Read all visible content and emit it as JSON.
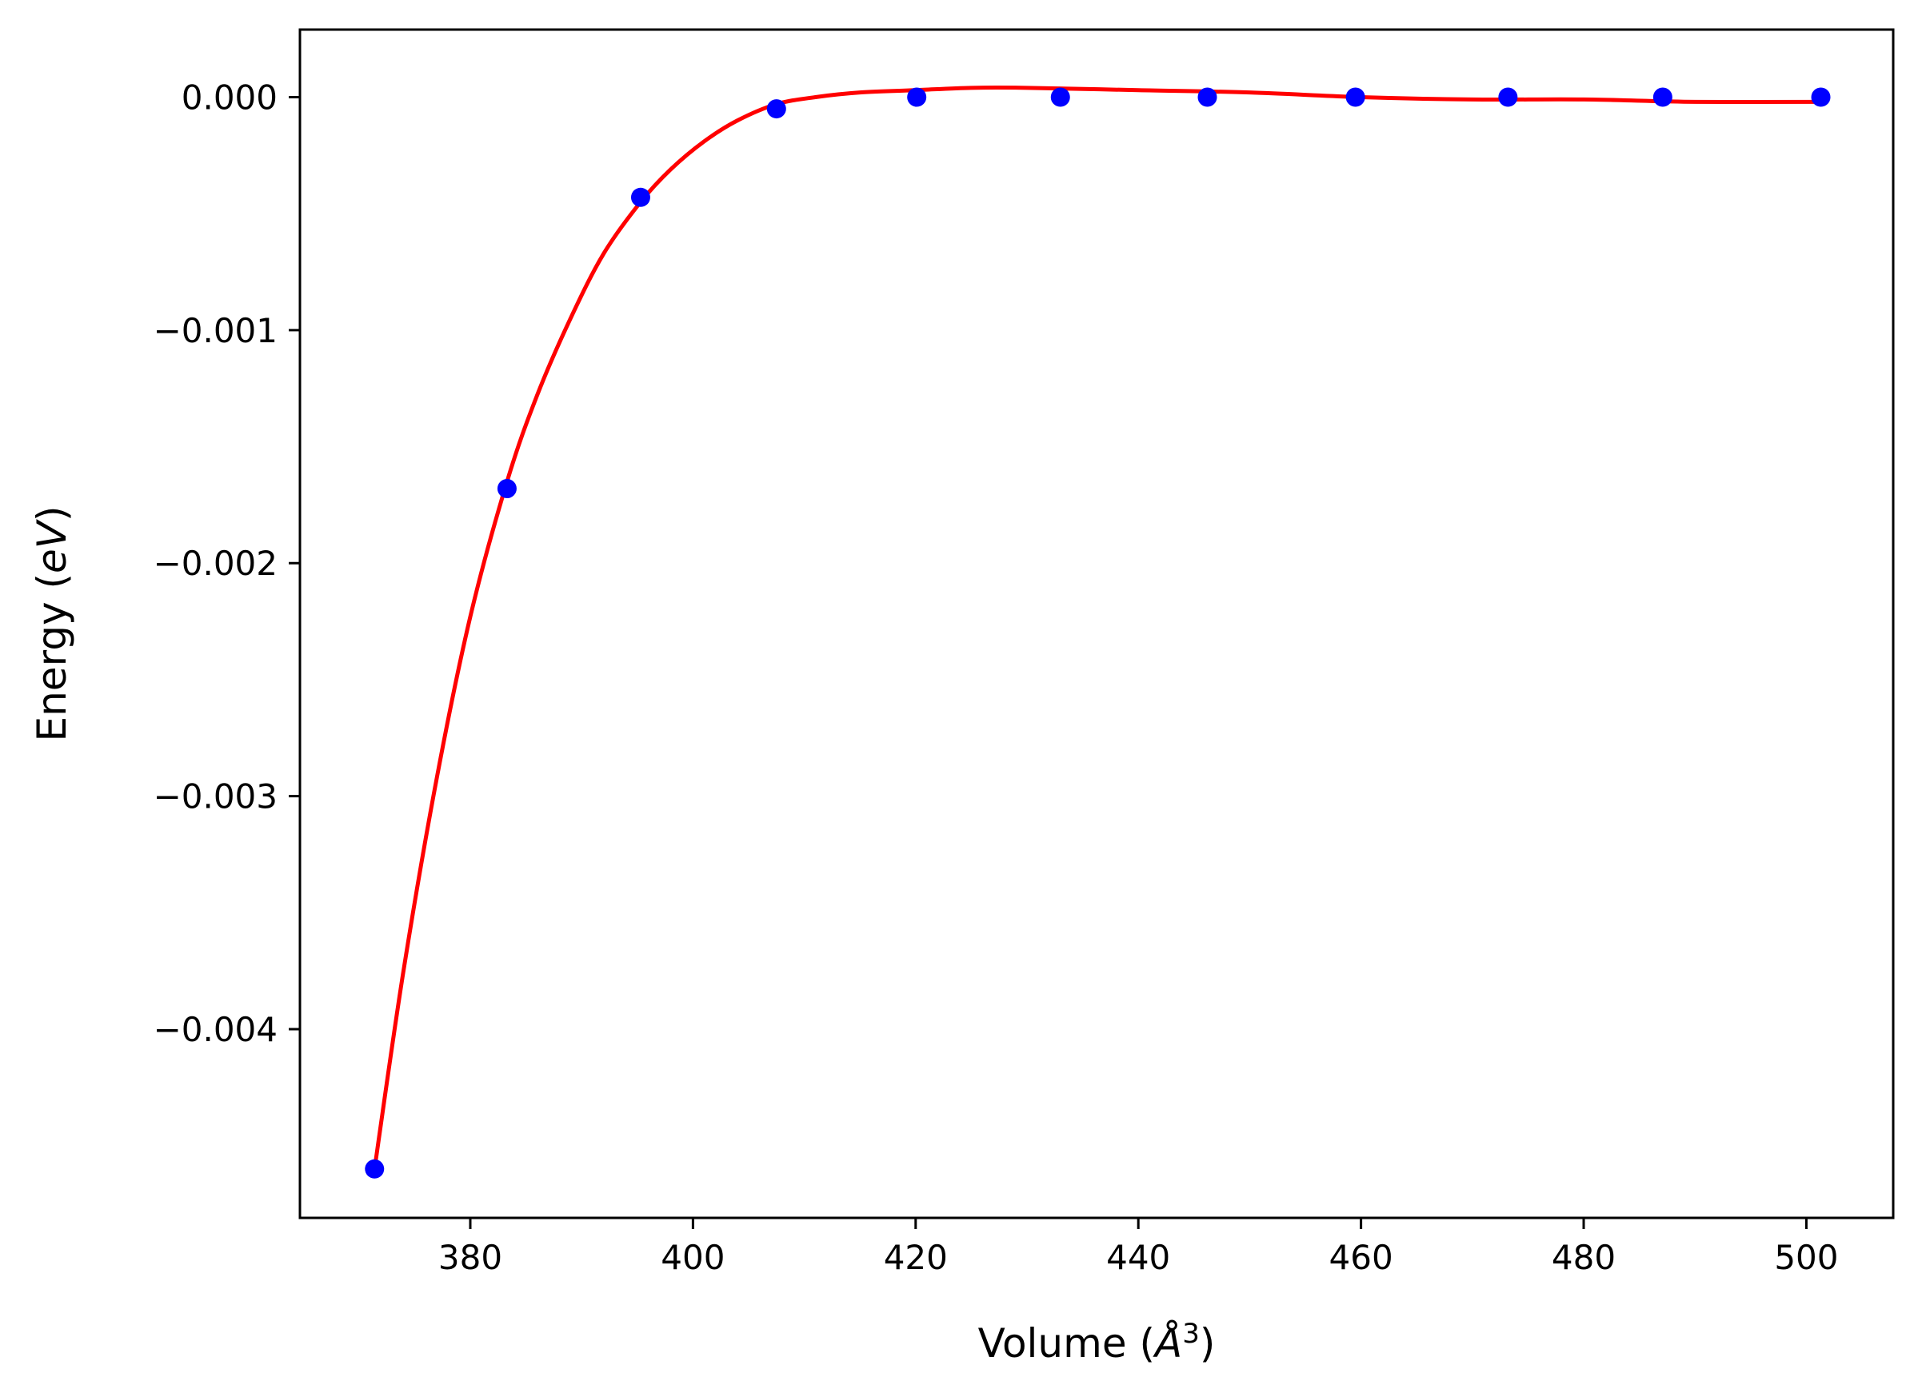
{
  "chart_data": {
    "type": "scatter",
    "title": "",
    "xlabel": "Volume",
    "xlabel_unit": "Å",
    "xlabel_unit_exponent": "3",
    "ylabel": "Energy",
    "ylabel_unit": "eV",
    "xlim": [
      364.7,
      507.8
    ],
    "ylim": [
      -0.00481,
      0.00029
    ],
    "x_ticks": [
      380,
      400,
      420,
      440,
      460,
      480,
      500
    ],
    "x_tick_labels": [
      "380",
      "400",
      "420",
      "440",
      "460",
      "480",
      "500"
    ],
    "y_ticks": [
      0.0,
      -0.001,
      -0.002,
      -0.003,
      -0.004
    ],
    "y_tick_labels": [
      "0.000",
      "−0.001",
      "−0.002",
      "−0.003",
      "−0.004"
    ],
    "grid": false,
    "legend": "none",
    "series": [
      {
        "kind": "points",
        "color": "#0000ff",
        "x": [
          371.4,
          383.3,
          395.3,
          407.5,
          420.1,
          433.0,
          446.2,
          459.5,
          473.2,
          487.1,
          501.3
        ],
        "y": [
          -0.0046,
          -0.00168,
          -0.00043,
          -5e-05,
          0.0,
          0.0,
          0.0,
          0.0,
          0.0,
          0.0,
          0.0
        ]
      },
      {
        "kind": "fit-curve",
        "color": "#ff0000",
        "x": [
          371.4,
          374,
          377,
          380,
          383.3,
          386,
          389,
          392,
          395.3,
          398,
          401,
          404,
          407.5,
          411,
          415,
          420,
          425,
          430,
          440,
          450,
          460,
          470,
          480,
          490,
          501.3
        ],
        "y": [
          -0.0046,
          -0.00375,
          -0.00292,
          -0.00223,
          -0.00165,
          -0.00128,
          -0.00095,
          -0.00067,
          -0.00045,
          -0.00031,
          -0.00019,
          -0.0001,
          -3e-05,
          0.0,
          2e-05,
          3e-05,
          4e-05,
          4e-05,
          3e-05,
          2e-05,
          0.0,
          -1e-05,
          -1e-05,
          -2e-05,
          -2e-05
        ]
      }
    ]
  }
}
